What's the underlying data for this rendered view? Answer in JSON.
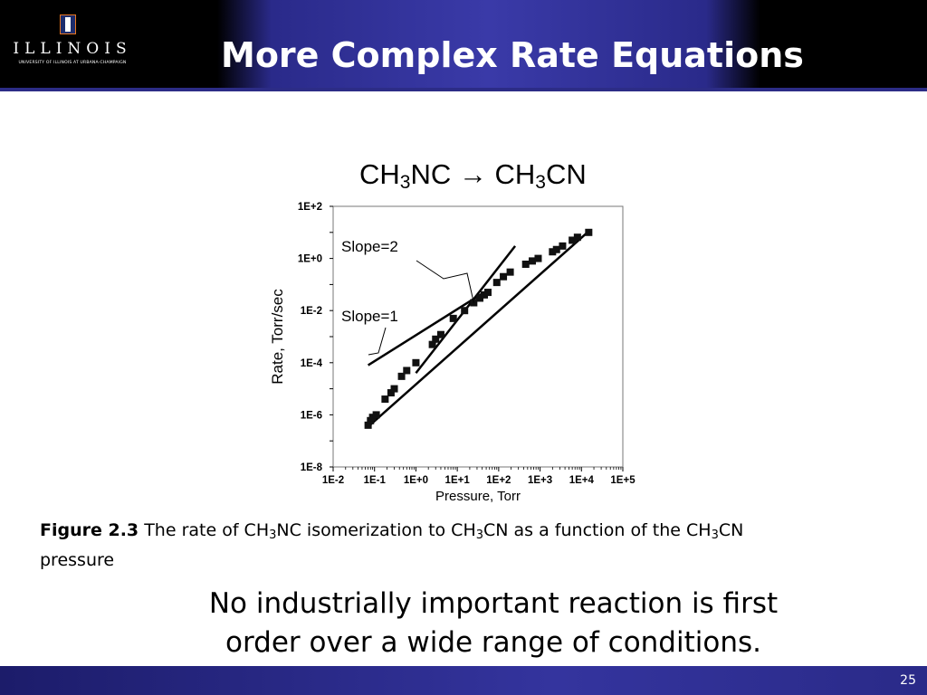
{
  "header": {
    "title": "More Complex Rate Equations",
    "logo_word": "ILLINOIS",
    "logo_sub": "UNIVERSITY OF ILLINOIS AT URBANA-CHAMPAIGN"
  },
  "equation": {
    "left": "CH",
    "left_sub": "3",
    "left_rest": "NC",
    "arrow": "→",
    "right": "CH",
    "right_sub": "3",
    "right_rest": "CN"
  },
  "caption": {
    "label": "Figure 2.3",
    "t1": " The rate of CH",
    "s1": "3",
    "t2": "NC isomerization to CH",
    "s2": "3",
    "t3": "CN as a function of the CH",
    "s3": "3",
    "t4": "CN",
    "t5": "pressure"
  },
  "note": "No industrially important reaction is first order over a wide range of conditions.",
  "page_number": "25",
  "chart_data": {
    "type": "scatter",
    "xlabel": "Pressure, Torr",
    "ylabel": "Rate, Torr/sec",
    "x_scale": "log",
    "y_scale": "log",
    "xlim": [
      0.01,
      100000
    ],
    "ylim": [
      1e-08,
      100
    ],
    "x_ticks": [
      "1E-2",
      "1E-1",
      "1E+0",
      "1E+1",
      "1E+2",
      "1E+3",
      "1E+4",
      "1E+5"
    ],
    "y_ticks": [
      "1E+2",
      "1E+0",
      "1E-2",
      "1E-4",
      "1E-6",
      "1E-8"
    ],
    "series": [
      {
        "marker": "square",
        "x": [
          0.07,
          0.08,
          0.09,
          0.11,
          0.18,
          0.25,
          0.3,
          0.45,
          0.6,
          1.0,
          2.5,
          3.0,
          4.0,
          8.0,
          15,
          25,
          35,
          45,
          55,
          90,
          130,
          190,
          450,
          650,
          900,
          2000,
          2500,
          3500,
          6000,
          8000,
          15000
        ],
        "y": [
          4e-07,
          6e-07,
          8e-07,
          1e-06,
          4e-06,
          7e-06,
          1e-05,
          3e-05,
          5e-05,
          0.0001,
          0.0005,
          0.0008,
          0.0012,
          0.005,
          0.01,
          0.02,
          0.03,
          0.04,
          0.05,
          0.12,
          0.2,
          0.3,
          0.6,
          0.8,
          1.0,
          1.8,
          2.2,
          3.0,
          5.0,
          6.5,
          10.0
        ]
      },
      {
        "kind": "line",
        "x": [
          0.07,
          15000
        ],
        "y": [
          3.5e-07,
          11
        ]
      },
      {
        "kind": "line",
        "name": "Slope=2",
        "x": [
          1.0,
          250
        ],
        "y": [
          4e-05,
          3
        ]
      },
      {
        "kind": "line",
        "name": "Slope=1",
        "x": [
          0.07,
          40
        ],
        "y": [
          8e-05,
          0.045
        ]
      }
    ],
    "annotations": [
      "Slope=2",
      "Slope=1"
    ]
  }
}
